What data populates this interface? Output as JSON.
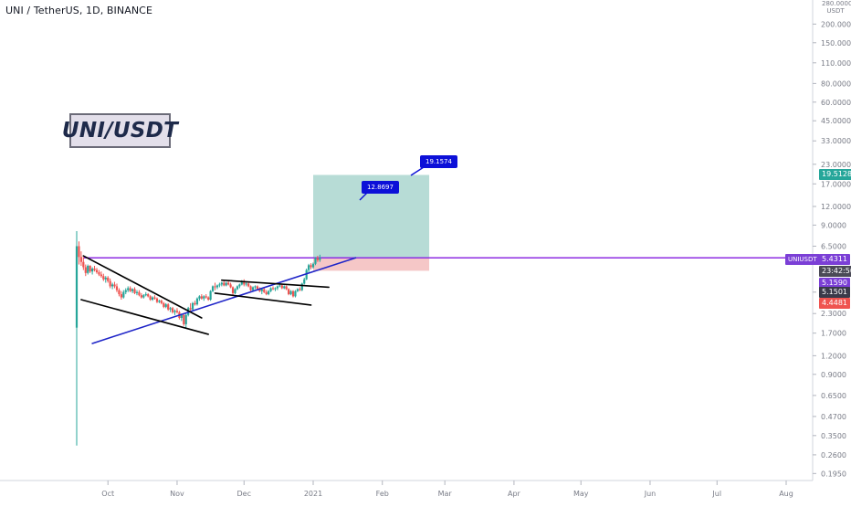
{
  "header": {
    "symbol_title": "UNI / TetherUS, 1D, BINANCE"
  },
  "watermark": {
    "text": "UNI/USDT"
  },
  "price_axis": {
    "unit_top": "280.0000",
    "unit_label": "USDT",
    "ticks": [
      "200.0000",
      "150.0000",
      "110.0000",
      "80.0000",
      "60.0000",
      "45.0000",
      "33.0000",
      "23.0000",
      "17.0000",
      "12.0000",
      "9.0000",
      "6.5000",
      "3.2000",
      "2.3000",
      "1.7000",
      "1.2000",
      "0.9000",
      "0.6500",
      "0.4700",
      "0.3500",
      "0.2600",
      "0.1950"
    ],
    "colors": {
      "axis_text": "#787b86",
      "axis_line": "#d1d4dc"
    }
  },
  "time_axis": {
    "ticks": [
      "Oct",
      "Nov",
      "Dec",
      "2021",
      "Feb",
      "Mar",
      "Apr",
      "May",
      "Jun",
      "Jul",
      "Aug"
    ]
  },
  "labels": {
    "target": {
      "text": "19.5128",
      "color": "#26a69a"
    },
    "symbol_tag": {
      "text": "UNIUSDT",
      "color": "#7b3fd6"
    },
    "last_price": {
      "text": "5.4311",
      "color": "#7b3fd6"
    },
    "countdown": {
      "text": "23:42:50",
      "color": "#4a4a56"
    },
    "level_a": {
      "text": "5.1590",
      "color": "#7b3fd6"
    },
    "level_b": {
      "text": "5.1501",
      "color": "#3a3a4a"
    },
    "stop": {
      "text": "4.4481",
      "color": "#ef5350"
    }
  },
  "position_tool": {
    "entry": 5.4311,
    "target": 19.5128,
    "stop": 4.4481,
    "profit_color": "#b7dcd6",
    "loss_color": "#f5c7c7"
  },
  "callouts": [
    {
      "text": "19.1574"
    },
    {
      "text": "12.8697"
    }
  ],
  "colors": {
    "up": "#26a69a",
    "down": "#ef5350",
    "horizontal_line": "#8e2de2",
    "trendline": "#1e24c8",
    "pattern_lines": "#000000"
  },
  "chart_data": {
    "type": "candlestick",
    "title": "UNI / TetherUS, 1D, BINANCE",
    "scale": "log",
    "ylim": [
      0.18,
      290
    ],
    "x_range": [
      "2020-09-17",
      "2021-08-10"
    ],
    "candles": [
      [
        "2020-09-17",
        1.85,
        8.2,
        0.3,
        6.5
      ],
      [
        "2020-09-18",
        6.5,
        7.0,
        4.9,
        5.5
      ],
      [
        "2020-09-19",
        5.5,
        6.0,
        4.8,
        5.1
      ],
      [
        "2020-09-20",
        5.1,
        5.5,
        4.5,
        4.7
      ],
      [
        "2020-09-21",
        4.7,
        4.9,
        4.1,
        4.3
      ],
      [
        "2020-09-22",
        4.3,
        4.9,
        4.2,
        4.8
      ],
      [
        "2020-09-23",
        4.8,
        4.85,
        4.3,
        4.4
      ],
      [
        "2020-09-24",
        4.4,
        4.7,
        4.2,
        4.6
      ],
      [
        "2020-09-25",
        4.6,
        4.8,
        4.4,
        4.5
      ],
      [
        "2020-09-26",
        4.5,
        4.65,
        4.25,
        4.35
      ],
      [
        "2020-09-27",
        4.35,
        4.5,
        4.1,
        4.2
      ],
      [
        "2020-09-28",
        4.2,
        4.4,
        4.0,
        4.1
      ],
      [
        "2020-09-29",
        4.1,
        4.25,
        3.8,
        3.9
      ],
      [
        "2020-09-30",
        3.9,
        4.1,
        3.7,
        4.0
      ],
      [
        "2020-10-01",
        4.0,
        4.1,
        3.7,
        3.8
      ],
      [
        "2020-10-02",
        3.8,
        3.95,
        3.4,
        3.5
      ],
      [
        "2020-10-03",
        3.5,
        3.7,
        3.35,
        3.6
      ],
      [
        "2020-10-04",
        3.6,
        3.75,
        3.4,
        3.5
      ],
      [
        "2020-10-05",
        3.5,
        3.65,
        3.2,
        3.3
      ],
      [
        "2020-10-06",
        3.3,
        3.4,
        3.0,
        3.1
      ],
      [
        "2020-10-07",
        3.1,
        3.25,
        2.85,
        2.95
      ],
      [
        "2020-10-08",
        2.95,
        3.3,
        2.9,
        3.2
      ],
      [
        "2020-10-09",
        3.2,
        3.4,
        3.1,
        3.3
      ],
      [
        "2020-10-10",
        3.3,
        3.5,
        3.2,
        3.4
      ],
      [
        "2020-10-11",
        3.4,
        3.5,
        3.2,
        3.25
      ],
      [
        "2020-10-12",
        3.25,
        3.4,
        3.15,
        3.35
      ],
      [
        "2020-10-13",
        3.35,
        3.45,
        3.1,
        3.15
      ],
      [
        "2020-10-14",
        3.15,
        3.3,
        3.05,
        3.2
      ],
      [
        "2020-10-15",
        3.2,
        3.3,
        3.0,
        3.05
      ],
      [
        "2020-10-16",
        3.05,
        3.15,
        2.9,
        2.95
      ],
      [
        "2020-10-17",
        2.95,
        3.1,
        2.9,
        3.05
      ],
      [
        "2020-10-18",
        3.05,
        3.2,
        3.0,
        3.1
      ],
      [
        "2020-10-19",
        3.1,
        3.15,
        2.95,
        3.0
      ],
      [
        "2020-10-20",
        3.0,
        3.05,
        2.8,
        2.85
      ],
      [
        "2020-10-21",
        2.85,
        3.0,
        2.8,
        2.95
      ],
      [
        "2020-10-22",
        2.95,
        3.05,
        2.85,
        2.9
      ],
      [
        "2020-10-23",
        2.9,
        2.95,
        2.7,
        2.75
      ],
      [
        "2020-10-24",
        2.75,
        2.85,
        2.7,
        2.8
      ],
      [
        "2020-10-25",
        2.8,
        2.85,
        2.65,
        2.7
      ],
      [
        "2020-10-26",
        2.7,
        2.75,
        2.5,
        2.55
      ],
      [
        "2020-10-27",
        2.55,
        2.7,
        2.5,
        2.65
      ],
      [
        "2020-10-28",
        2.65,
        2.7,
        2.4,
        2.45
      ],
      [
        "2020-10-29",
        2.45,
        2.55,
        2.35,
        2.5
      ],
      [
        "2020-10-30",
        2.5,
        2.55,
        2.3,
        2.35
      ],
      [
        "2020-10-31",
        2.35,
        2.45,
        2.25,
        2.4
      ],
      [
        "2020-11-01",
        2.4,
        2.5,
        2.3,
        2.35
      ],
      [
        "2020-11-02",
        2.35,
        2.4,
        2.1,
        2.15
      ],
      [
        "2020-11-03",
        2.15,
        2.3,
        2.05,
        2.25
      ],
      [
        "2020-11-04",
        2.25,
        2.3,
        1.9,
        1.95
      ],
      [
        "2020-11-05",
        1.95,
        2.3,
        1.85,
        2.25
      ],
      [
        "2020-11-06",
        2.25,
        2.55,
        2.2,
        2.5
      ],
      [
        "2020-11-07",
        2.5,
        2.7,
        2.4,
        2.45
      ],
      [
        "2020-11-08",
        2.45,
        2.75,
        2.4,
        2.7
      ],
      [
        "2020-11-09",
        2.7,
        2.8,
        2.6,
        2.65
      ],
      [
        "2020-11-10",
        2.65,
        2.95,
        2.6,
        2.9
      ],
      [
        "2020-11-11",
        2.9,
        3.05,
        2.8,
        3.0
      ],
      [
        "2020-11-12",
        3.0,
        3.1,
        2.85,
        2.9
      ],
      [
        "2020-11-13",
        2.9,
        3.05,
        2.8,
        3.0
      ],
      [
        "2020-11-14",
        3.0,
        3.1,
        2.9,
        2.95
      ],
      [
        "2020-11-15",
        2.95,
        3.0,
        2.8,
        2.85
      ],
      [
        "2020-11-16",
        2.85,
        3.3,
        2.8,
        3.25
      ],
      [
        "2020-11-17",
        3.25,
        3.55,
        3.2,
        3.5
      ],
      [
        "2020-11-18",
        3.5,
        3.7,
        3.3,
        3.45
      ],
      [
        "2020-11-19",
        3.45,
        3.6,
        3.35,
        3.55
      ],
      [
        "2020-11-20",
        3.55,
        3.7,
        3.45,
        3.6
      ],
      [
        "2020-11-21",
        3.6,
        3.75,
        3.5,
        3.7
      ],
      [
        "2020-11-22",
        3.7,
        3.8,
        3.5,
        3.55
      ],
      [
        "2020-11-23",
        3.55,
        3.75,
        3.5,
        3.7
      ],
      [
        "2020-11-24",
        3.7,
        3.8,
        3.55,
        3.6
      ],
      [
        "2020-11-25",
        3.6,
        3.7,
        3.4,
        3.45
      ],
      [
        "2020-11-26",
        3.45,
        3.5,
        3.05,
        3.15
      ],
      [
        "2020-11-27",
        3.15,
        3.4,
        3.1,
        3.35
      ],
      [
        "2020-11-28",
        3.35,
        3.55,
        3.3,
        3.5
      ],
      [
        "2020-11-29",
        3.5,
        3.65,
        3.4,
        3.6
      ],
      [
        "2020-11-30",
        3.6,
        3.85,
        3.55,
        3.8
      ],
      [
        "2020-12-01",
        3.8,
        3.9,
        3.5,
        3.6
      ],
      [
        "2020-12-02",
        3.6,
        3.75,
        3.5,
        3.65
      ],
      [
        "2020-12-03",
        3.65,
        3.7,
        3.45,
        3.5
      ],
      [
        "2020-12-04",
        3.5,
        3.55,
        3.25,
        3.3
      ],
      [
        "2020-12-05",
        3.3,
        3.5,
        3.25,
        3.45
      ],
      [
        "2020-12-06",
        3.45,
        3.55,
        3.35,
        3.5
      ],
      [
        "2020-12-07",
        3.5,
        3.55,
        3.3,
        3.35
      ],
      [
        "2020-12-08",
        3.35,
        3.45,
        3.2,
        3.25
      ],
      [
        "2020-12-09",
        3.25,
        3.4,
        3.1,
        3.35
      ],
      [
        "2020-12-10",
        3.35,
        3.4,
        3.15,
        3.2
      ],
      [
        "2020-12-11",
        3.2,
        3.3,
        3.05,
        3.1
      ],
      [
        "2020-12-12",
        3.1,
        3.3,
        3.05,
        3.25
      ],
      [
        "2020-12-13",
        3.25,
        3.45,
        3.2,
        3.4
      ],
      [
        "2020-12-14",
        3.4,
        3.5,
        3.3,
        3.35
      ],
      [
        "2020-12-15",
        3.35,
        3.45,
        3.25,
        3.4
      ],
      [
        "2020-12-16",
        3.4,
        3.55,
        3.3,
        3.5
      ],
      [
        "2020-12-17",
        3.5,
        3.7,
        3.45,
        3.55
      ],
      [
        "2020-12-18",
        3.55,
        3.6,
        3.35,
        3.4
      ],
      [
        "2020-12-19",
        3.4,
        3.55,
        3.35,
        3.5
      ],
      [
        "2020-12-20",
        3.5,
        3.55,
        3.3,
        3.35
      ],
      [
        "2020-12-21",
        3.35,
        3.4,
        3.05,
        3.1
      ],
      [
        "2020-12-22",
        3.1,
        3.3,
        3.05,
        3.25
      ],
      [
        "2020-12-23",
        3.25,
        3.3,
        2.95,
        3.0
      ],
      [
        "2020-12-24",
        3.0,
        3.3,
        2.95,
        3.25
      ],
      [
        "2020-12-25",
        3.25,
        3.4,
        3.2,
        3.35
      ],
      [
        "2020-12-26",
        3.35,
        3.45,
        3.25,
        3.3
      ],
      [
        "2020-12-27",
        3.3,
        3.7,
        3.25,
        3.65
      ],
      [
        "2020-12-28",
        3.65,
        4.0,
        3.6,
        3.9
      ],
      [
        "2020-12-29",
        3.9,
        4.6,
        3.85,
        4.5
      ],
      [
        "2020-12-30",
        4.5,
        4.95,
        4.3,
        4.85
      ],
      [
        "2020-12-31",
        4.85,
        5.0,
        4.55,
        4.7
      ],
      [
        "2021-01-01",
        4.7,
        5.05,
        4.6,
        4.95
      ],
      [
        "2021-01-02",
        4.95,
        5.5,
        4.85,
        5.4
      ],
      [
        "2021-01-03",
        5.4,
        5.6,
        5.1,
        5.25
      ],
      [
        "2021-01-04",
        5.25,
        5.7,
        5.1,
        5.4311
      ]
    ],
    "annotations": {
      "horizontal_level": 5.4311,
      "position_entry": 5.4311,
      "position_target": 19.5128,
      "position_stop": 4.4481,
      "callouts": [
        19.1574,
        12.8697
      ],
      "ascending_trendline": [
        [
          "2020-09-24",
          1.45
        ],
        [
          "2021-01-20",
          5.4311
        ]
      ],
      "falling_wedge_upper": [
        [
          "2020-09-20",
          5.6
        ],
        [
          "2020-11-12",
          2.15
        ]
      ],
      "falling_wedge_lower": [
        [
          "2020-09-19",
          2.85
        ],
        [
          "2020-11-15",
          1.67
        ]
      ],
      "channel_upper": [
        [
          "2020-11-21",
          3.85
        ],
        [
          "2021-01-08",
          3.45
        ]
      ],
      "channel_lower": [
        [
          "2020-11-18",
          3.15
        ],
        [
          "2020-12-31",
          2.62
        ]
      ]
    }
  }
}
